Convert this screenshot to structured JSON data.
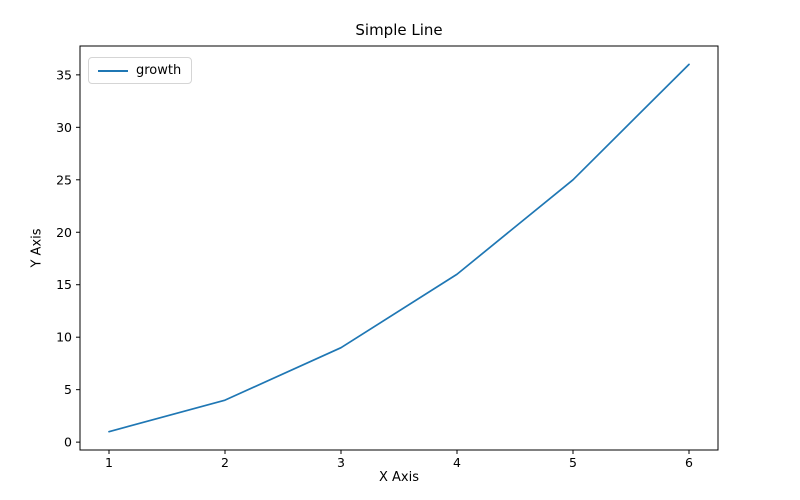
{
  "chart_data": {
    "type": "line",
    "title": "Simple Line",
    "xlabel": "X Axis",
    "ylabel": "Y Axis",
    "x": [
      1,
      2,
      3,
      4,
      5,
      6
    ],
    "series": [
      {
        "name": "growth",
        "values": [
          1,
          4,
          9,
          16,
          25,
          36
        ],
        "color": "#1f77b4"
      }
    ],
    "xlim": [
      0.75,
      6.25
    ],
    "ylim": [
      -0.75,
      37.75
    ],
    "xticks": [
      1,
      2,
      3,
      4,
      5,
      6
    ],
    "yticks": [
      0,
      5,
      10,
      15,
      20,
      25,
      30,
      35
    ],
    "grid": false,
    "legend_position": "upper left",
    "colors": {
      "line": "#1f77b4",
      "spine": "#000000",
      "tick_label": "#000000",
      "background": "#ffffff",
      "legend_border": "#d5d5d5"
    }
  }
}
